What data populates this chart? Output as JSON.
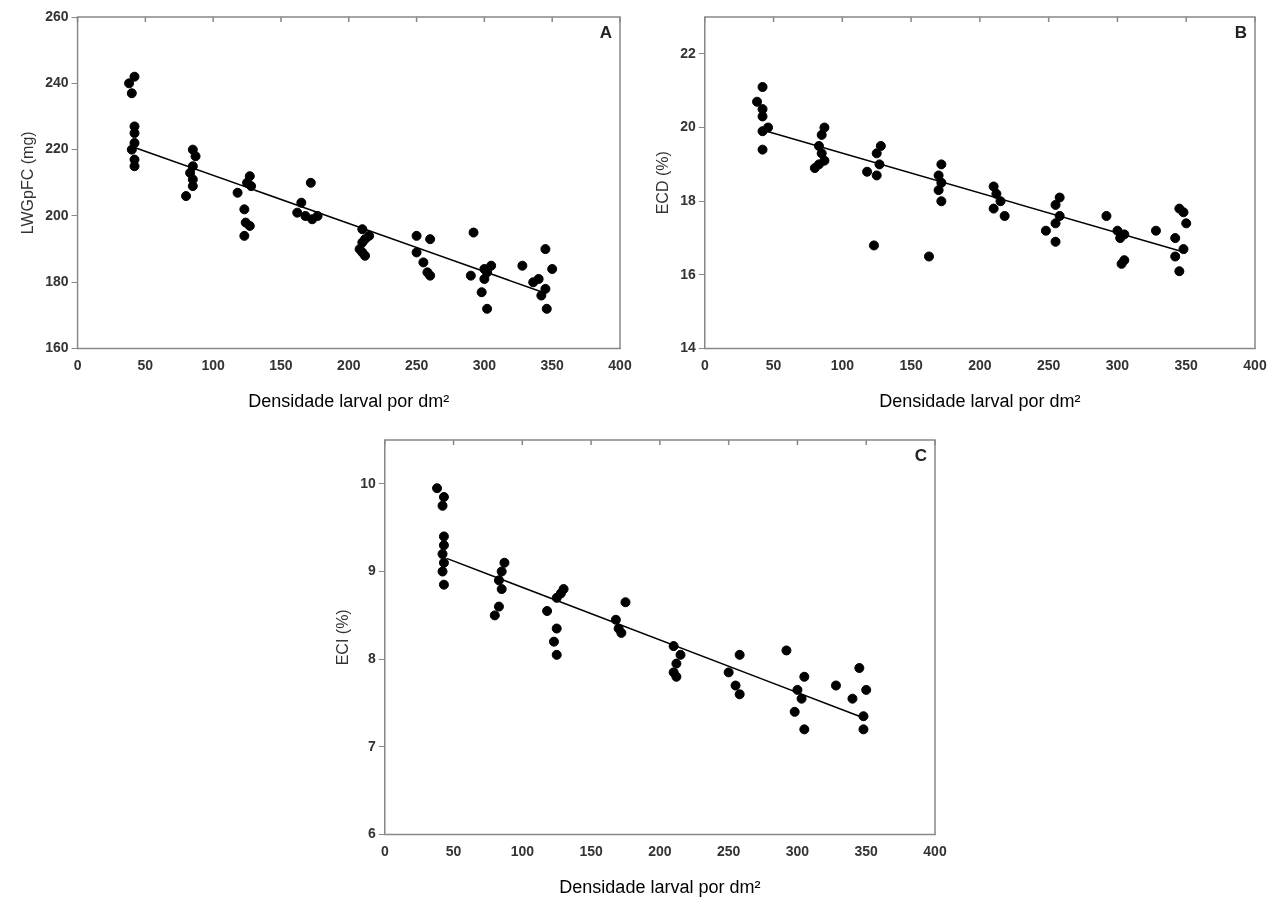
{
  "chart_data": [
    {
      "type": "scatter",
      "ylabel": "LWGpFC (mg)",
      "xlabel": "Densidade larval por dm²",
      "annotations": [
        "A"
      ],
      "xlim": [
        0,
        400
      ],
      "xticks": [
        0,
        50,
        100,
        150,
        200,
        250,
        300,
        350,
        400
      ],
      "ylim": [
        160,
        260
      ],
      "yticks": [
        160,
        180,
        200,
        220,
        240,
        260
      ],
      "grid": false,
      "legend": false,
      "series": [
        {
          "type": "scatter",
          "marker": "circle",
          "color": "#000000",
          "x": [
            38,
            42,
            40,
            42,
            42,
            42,
            40,
            42,
            42,
            85,
            87,
            85,
            83,
            85,
            85,
            80,
            127,
            125,
            128,
            118,
            123,
            124,
            127,
            123,
            172,
            165,
            162,
            168,
            173,
            177,
            210,
            215,
            212,
            210,
            208,
            210,
            212,
            250,
            260,
            250,
            255,
            258,
            260,
            292,
            305,
            300,
            302,
            290,
            300,
            298,
            302,
            345,
            328,
            350,
            340,
            336,
            345,
            342,
            346
          ],
          "values": [
            240,
            242,
            237,
            227,
            225,
            222,
            220,
            217,
            215,
            220,
            218,
            215,
            213,
            211,
            209,
            206,
            212,
            210,
            209,
            207,
            202,
            198,
            197,
            194,
            210,
            204,
            201,
            200,
            199,
            200,
            196,
            194,
            193,
            192,
            190,
            189,
            188,
            194,
            193,
            189,
            186,
            183,
            182,
            195,
            185,
            184,
            183,
            182,
            181,
            177,
            172,
            190,
            185,
            184,
            181,
            180,
            178,
            176,
            172
          ]
        },
        {
          "type": "line",
          "marker": "none",
          "color": "#000000",
          "line_style": "solid",
          "x": [
            43,
            343
          ],
          "values": [
            220.5,
            177
          ]
        }
      ]
    },
    {
      "type": "scatter",
      "ylabel": "ECD (%)",
      "xlabel": "Densidade larval por dm²",
      "annotations": [
        "B"
      ],
      "xlim": [
        0,
        400
      ],
      "xticks": [
        0,
        50,
        100,
        150,
        200,
        250,
        300,
        350,
        400
      ],
      "ylim": [
        14,
        23
      ],
      "yticks": [
        14,
        16,
        18,
        20,
        22
      ],
      "grid": false,
      "legend": false,
      "series": [
        {
          "type": "scatter",
          "marker": "circle",
          "color": "#000000",
          "x": [
            42,
            38,
            42,
            42,
            46,
            42,
            42,
            87,
            85,
            83,
            85,
            87,
            83,
            80,
            128,
            125,
            127,
            118,
            125,
            123,
            172,
            170,
            172,
            170,
            172,
            163,
            210,
            212,
            215,
            210,
            218,
            258,
            255,
            258,
            255,
            248,
            255,
            292,
            300,
            305,
            302,
            305,
            303,
            345,
            348,
            350,
            328,
            342,
            348,
            342,
            345
          ],
          "values": [
            21.1,
            20.7,
            20.5,
            20.3,
            20.0,
            19.9,
            19.4,
            20.0,
            19.8,
            19.5,
            19.3,
            19.1,
            19.0,
            18.9,
            19.5,
            19.3,
            19.0,
            18.8,
            18.7,
            16.8,
            19.0,
            18.7,
            18.5,
            18.3,
            18.0,
            16.5,
            18.4,
            18.2,
            18.0,
            17.8,
            17.6,
            18.1,
            17.9,
            17.6,
            17.4,
            17.2,
            16.9,
            17.6,
            17.2,
            17.1,
            17.0,
            16.4,
            16.3,
            17.8,
            17.7,
            17.4,
            17.2,
            17.0,
            16.7,
            16.5,
            16.1
          ]
        },
        {
          "type": "line",
          "marker": "none",
          "color": "#000000",
          "line_style": "solid",
          "x": [
            45,
            350
          ],
          "values": [
            19.9,
            16.6
          ]
        }
      ]
    },
    {
      "type": "scatter",
      "ylabel": "ECI (%)",
      "xlabel": "Densidade larval por dm²",
      "annotations": [
        "C"
      ],
      "xlim": [
        0,
        400
      ],
      "xticks": [
        0,
        50,
        100,
        150,
        200,
        250,
        300,
        350,
        400
      ],
      "ylim": [
        6,
        10.5
      ],
      "yticks": [
        6,
        7,
        8,
        9,
        10
      ],
      "grid": false,
      "legend": false,
      "series": [
        {
          "type": "scatter",
          "marker": "circle",
          "color": "#000000",
          "x": [
            38,
            43,
            42,
            43,
            43,
            42,
            43,
            42,
            43,
            87,
            85,
            83,
            85,
            83,
            80,
            130,
            128,
            125,
            118,
            125,
            123,
            125,
            175,
            168,
            170,
            172,
            210,
            215,
            212,
            210,
            212,
            258,
            250,
            255,
            258,
            292,
            305,
            300,
            303,
            298,
            305,
            345,
            328,
            350,
            340,
            348,
            348
          ],
          "values": [
            9.95,
            9.85,
            9.75,
            9.4,
            9.3,
            9.2,
            9.1,
            9.0,
            8.85,
            9.1,
            9.0,
            8.9,
            8.8,
            8.6,
            8.5,
            8.8,
            8.75,
            8.7,
            8.55,
            8.35,
            8.2,
            8.05,
            8.65,
            8.45,
            8.35,
            8.3,
            8.15,
            8.05,
            7.95,
            7.85,
            7.8,
            8.05,
            7.85,
            7.7,
            7.6,
            8.1,
            7.8,
            7.65,
            7.55,
            7.4,
            7.2,
            7.9,
            7.7,
            7.65,
            7.55,
            7.35,
            7.2
          ]
        },
        {
          "type": "line",
          "marker": "none",
          "color": "#000000",
          "line_style": "solid",
          "x": [
            45,
            345
          ],
          "values": [
            9.15,
            7.35
          ]
        }
      ]
    }
  ]
}
